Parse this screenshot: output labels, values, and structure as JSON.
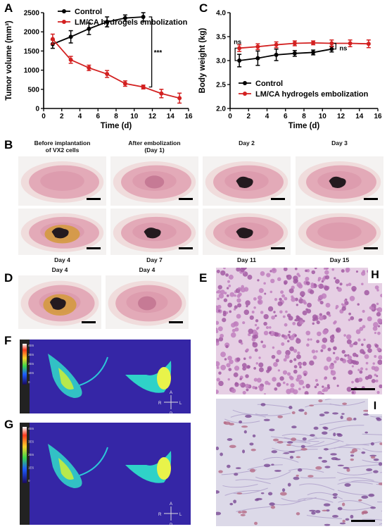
{
  "panels": {
    "a": "A",
    "b": "B",
    "c": "C",
    "d": "D",
    "e": "E",
    "f": "F",
    "g": "G",
    "h": "H",
    "i": "I"
  },
  "colors": {
    "control": "#000000",
    "treated": "#d32020",
    "tissue_pink": "#e8b4bf",
    "lesion": "#2a1e22",
    "he_bg": "#ead9ea",
    "he_cell": "#9a4f9d",
    "ivis_bg": "#3a2aa8"
  },
  "chart_data": [
    {
      "type": "line",
      "panel": "A",
      "xlabel": "Time (d)",
      "ylabel": "Tumor volume (mm³)",
      "xlim": [
        0,
        16
      ],
      "ylim": [
        0,
        2500
      ],
      "xticks": [
        0,
        2,
        4,
        6,
        8,
        10,
        12,
        14,
        16
      ],
      "yticks": [
        0,
        500,
        1000,
        1500,
        2000,
        2500
      ],
      "legend_position": "top-left",
      "significance": "***",
      "series": [
        {
          "name": "Control",
          "color": "#000000",
          "x": [
            1,
            3,
            5,
            7,
            9,
            11
          ],
          "y": [
            1680,
            1870,
            2080,
            2260,
            2360,
            2390
          ],
          "err": [
            110,
            160,
            150,
            130,
            80,
            110
          ]
        },
        {
          "name": "LM/CA hydrogels embolization",
          "color": "#d32020",
          "x": [
            1,
            3,
            5,
            7,
            9,
            11,
            13,
            15
          ],
          "y": [
            1810,
            1270,
            1060,
            900,
            650,
            560,
            390,
            270
          ],
          "err": [
            130,
            90,
            70,
            90,
            70,
            50,
            110,
            130
          ]
        }
      ]
    },
    {
      "type": "line",
      "panel": "C",
      "xlabel": "Time (d)",
      "ylabel": "Body weight (kg)",
      "xlim": [
        0,
        16
      ],
      "ylim": [
        2.0,
        4.0
      ],
      "xticks": [
        0,
        2,
        4,
        6,
        8,
        10,
        12,
        14,
        16
      ],
      "yticks": [
        2.0,
        2.5,
        3.0,
        3.5,
        4.0
      ],
      "legend_position": "bottom-left",
      "significance_left": "ns",
      "significance_right": "ns",
      "series": [
        {
          "name": "Control",
          "color": "#000000",
          "x": [
            1,
            3,
            5,
            7,
            9,
            11
          ],
          "y": [
            3.0,
            3.05,
            3.12,
            3.15,
            3.17,
            3.24
          ],
          "err": [
            0.13,
            0.15,
            0.12,
            0.06,
            0.05,
            0.06
          ]
        },
        {
          "name": "LM/CA hydrogels embolization",
          "color": "#d32020",
          "x": [
            1,
            3,
            5,
            7,
            9,
            11,
            13,
            15
          ],
          "y": [
            3.26,
            3.29,
            3.33,
            3.36,
            3.37,
            3.36,
            3.36,
            3.35
          ],
          "err": [
            0.07,
            0.06,
            0.06,
            0.05,
            0.04,
            0.07,
            0.07,
            0.08
          ]
        }
      ]
    }
  ],
  "panel_b": {
    "row1": [
      {
        "caption": "Before implantation\nof VX2 cells"
      },
      {
        "caption": "After embolization\n(Day 1)"
      },
      {
        "caption": "Day 2"
      },
      {
        "caption": "Day 3"
      }
    ],
    "row2": [
      {
        "caption": "Day 4"
      },
      {
        "caption": "Day 7"
      },
      {
        "caption": "Day 11"
      },
      {
        "caption": "Day 15"
      }
    ]
  },
  "panel_d": [
    {
      "caption": "Day 4"
    },
    {
      "caption": "Day 4"
    }
  ],
  "ivis_f": {
    "scale_labels": [
      "4E6",
      "3E6",
      "2E6",
      "1E6",
      "0"
    ]
  },
  "ivis_g": {
    "scale_labels": [
      "4E6",
      "3E6",
      "2E6",
      "1E6",
      "0"
    ]
  },
  "orientation": {
    "a": "A",
    "r": "R",
    "l": "L",
    "p": "P"
  }
}
